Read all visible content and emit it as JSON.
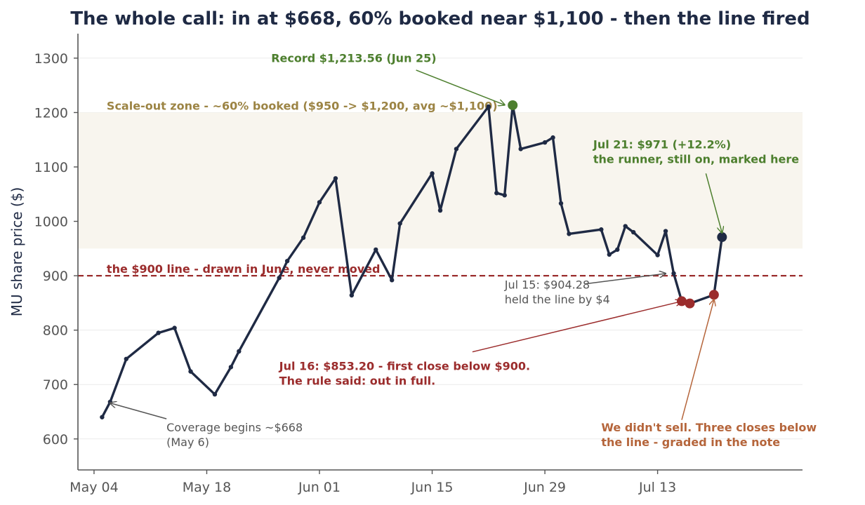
{
  "chart_data": {
    "type": "line",
    "title": "The whole call: in at $668, 60% booked near $1,100 - then the line fired",
    "ylabel": "MU share price ($)",
    "xlabel": "",
    "ylim": [
      543,
      1345
    ],
    "yticks": [
      600,
      700,
      800,
      900,
      1000,
      1100,
      1200,
      1300
    ],
    "xlim": [
      "2025-05-02",
      "2025-07-31"
    ],
    "xticks": [
      {
        "date": "2025-05-04",
        "label": "May 04"
      },
      {
        "date": "2025-05-18",
        "label": "May 18"
      },
      {
        "date": "2025-06-01",
        "label": "Jun 01"
      },
      {
        "date": "2025-06-15",
        "label": "Jun 15"
      },
      {
        "date": "2025-06-29",
        "label": "Jun 29"
      },
      {
        "date": "2025-07-13",
        "label": "Jul 13"
      }
    ],
    "grid": true,
    "colors": {
      "line": "#1f2a44",
      "zone_fill": "#f8f5ee",
      "scale_zone_text": "#9c8444",
      "threshold": "#9b2c2c",
      "green": "#4d7f2e",
      "red": "#9b2c2c",
      "orange": "#b5653b",
      "gray": "#555555"
    },
    "series": [
      {
        "points": [
          {
            "x": "2025-05-05",
            "y": 640
          },
          {
            "x": "2025-05-06",
            "y": 668
          },
          {
            "x": "2025-05-08",
            "y": 747
          },
          {
            "x": "2025-05-12",
            "y": 795
          },
          {
            "x": "2025-05-14",
            "y": 804
          },
          {
            "x": "2025-05-16",
            "y": 724
          },
          {
            "x": "2025-05-19",
            "y": 682
          },
          {
            "x": "2025-05-21",
            "y": 732
          },
          {
            "x": "2025-05-22",
            "y": 761
          },
          {
            "x": "2025-05-27",
            "y": 896
          },
          {
            "x": "2025-05-28",
            "y": 927
          },
          {
            "x": "2025-05-30",
            "y": 970
          },
          {
            "x": "2025-06-01",
            "y": 1035
          },
          {
            "x": "2025-06-03",
            "y": 1079
          },
          {
            "x": "2025-06-05",
            "y": 864
          },
          {
            "x": "2025-06-08",
            "y": 948
          },
          {
            "x": "2025-06-10",
            "y": 892
          },
          {
            "x": "2025-06-11",
            "y": 996
          },
          {
            "x": "2025-06-15",
            "y": 1088
          },
          {
            "x": "2025-06-16",
            "y": 1020
          },
          {
            "x": "2025-06-18",
            "y": 1133
          },
          {
            "x": "2025-06-22",
            "y": 1211
          },
          {
            "x": "2025-06-23",
            "y": 1052
          },
          {
            "x": "2025-06-24",
            "y": 1048
          },
          {
            "x": "2025-06-25",
            "y": 1213.56
          },
          {
            "x": "2025-06-26",
            "y": 1133
          },
          {
            "x": "2025-06-29",
            "y": 1145
          },
          {
            "x": "2025-06-30",
            "y": 1154
          },
          {
            "x": "2025-07-01",
            "y": 1033
          },
          {
            "x": "2025-07-02",
            "y": 977
          },
          {
            "x": "2025-07-06",
            "y": 985
          },
          {
            "x": "2025-07-07",
            "y": 939
          },
          {
            "x": "2025-07-08",
            "y": 948
          },
          {
            "x": "2025-07-09",
            "y": 991
          },
          {
            "x": "2025-07-10",
            "y": 980
          },
          {
            "x": "2025-07-13",
            "y": 938
          },
          {
            "x": "2025-07-14",
            "y": 982
          },
          {
            "x": "2025-07-15",
            "y": 904.28
          },
          {
            "x": "2025-07-16",
            "y": 853.2
          },
          {
            "x": "2025-07-17",
            "y": 849
          },
          {
            "x": "2025-07-20",
            "y": 865
          },
          {
            "x": "2025-07-21",
            "y": 971
          }
        ]
      }
    ],
    "bands": [
      {
        "y0": 950,
        "y1": 1200,
        "label": "Scale-out zone - ~60% booked ($950 -> $1,200, avg ~$1,100)",
        "label_at": {
          "x": "2025-05-04",
          "y": 1213
        }
      }
    ],
    "hlines": [
      {
        "y": 900,
        "label": "the $900 line - drawn in June, never moved",
        "label_at": {
          "x": "2025-05-04",
          "y": 913
        }
      }
    ],
    "highlights": [
      {
        "x": "2025-06-25",
        "y": 1213.56,
        "color": "green"
      },
      {
        "x": "2025-07-16",
        "y": 853.2,
        "color": "red"
      },
      {
        "x": "2025-07-17",
        "y": 849,
        "color": "red"
      },
      {
        "x": "2025-07-20",
        "y": 865,
        "color": "red"
      },
      {
        "x": "2025-07-21",
        "y": 971,
        "color": "navy"
      }
    ],
    "annotations": [
      {
        "id": "record",
        "lines": [
          "Record $1,213.56 (Jun 25)"
        ],
        "bold": true,
        "color": "green",
        "text_at": {
          "x": "2025-05-26",
          "y": 1293
        },
        "arrow_from": {
          "x": "2025-06-13",
          "y": 1278
        },
        "arrow_to": {
          "x": "2025-06-24",
          "y": 1214
        }
      },
      {
        "id": "jul21",
        "lines": [
          "Jul 21: $971 (+12.2%)",
          "the runner, still on, marked here"
        ],
        "bold": true,
        "color": "green",
        "text_at": {
          "x": "2025-07-05",
          "y": 1134
        },
        "arrow_from": {
          "x": "2025-07-19",
          "y": 1088
        },
        "arrow_to": {
          "x": "2025-07-21",
          "y": 979
        }
      },
      {
        "id": "jul15",
        "lines": [
          "Jul 15: $904.28",
          "held the line by $4"
        ],
        "bold": false,
        "color": "gray",
        "text_at": {
          "x": "2025-06-24",
          "y": 876
        },
        "arrow_from": {
          "x": "2025-07-04",
          "y": 885
        },
        "arrow_to": {
          "x": "2025-07-14",
          "y": 904
        }
      },
      {
        "id": "jul16",
        "lines": [
          "Jul 16: $853.20 - first close below $900.",
          "The rule said: out in full."
        ],
        "bold": true,
        "color": "red",
        "text_at": {
          "x": "2025-05-27",
          "y": 727
        },
        "arrow_from": {
          "x": "2025-06-20",
          "y": 760
        },
        "arrow_to": {
          "x": "2025-07-16",
          "y": 853
        }
      },
      {
        "id": "nosell",
        "lines": [
          "We didn't sell. Three closes below",
          "the line - graded in the note"
        ],
        "bold": true,
        "color": "orange",
        "text_at": {
          "x": "2025-07-06",
          "y": 614
        },
        "arrow_from": {
          "x": "2025-07-16",
          "y": 635
        },
        "arrow_to": {
          "x": "2025-07-20",
          "y": 856
        }
      },
      {
        "id": "coverage",
        "lines": [
          "Coverage begins ~$668",
          "(May 6)"
        ],
        "bold": false,
        "color": "gray",
        "text_at": {
          "x": "2025-05-13",
          "y": 614
        },
        "arrow_from": {
          "x": "2025-05-13",
          "y": 637
        },
        "arrow_to": {
          "x": "2025-05-06",
          "y": 666
        }
      }
    ]
  }
}
